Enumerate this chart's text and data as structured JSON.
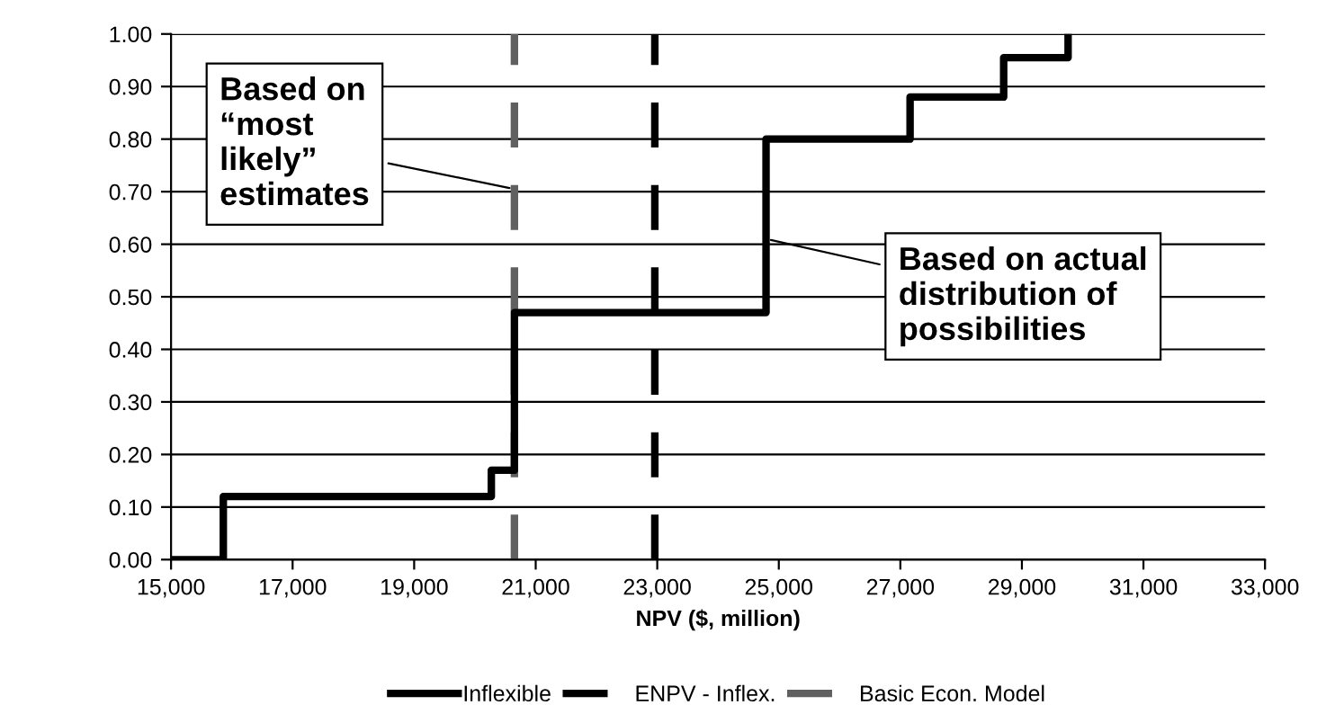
{
  "chart_data": {
    "type": "step",
    "xlabel": "NPV ($, million)",
    "series": [
      {
        "name": "Inflexible",
        "color": "#000000",
        "line_style": "solid",
        "x": [
          15000,
          15860,
          20270,
          20650,
          24790,
          27160,
          28700,
          29760
        ],
        "values": [
          0,
          0.12,
          0.17,
          0.47,
          0.8,
          0.88,
          0.955,
          1.0
        ]
      },
      {
        "name": "ENPV - Inflex.",
        "type": "line",
        "color": "#000000",
        "line_style": "dashed",
        "x": [
          22960,
          22960
        ],
        "values": [
          0,
          1.0
        ]
      },
      {
        "name": "Basic Econ. Model",
        "type": "line",
        "color": "#606060",
        "line_style": "dashed",
        "x": [
          20650,
          20650
        ],
        "values": [
          0,
          1.0
        ]
      }
    ],
    "xlim": [
      15000,
      33000
    ],
    "xticks": [
      {
        "value": 15000,
        "label": "15,000"
      },
      {
        "value": 17000,
        "label": "17,000"
      },
      {
        "value": 19000,
        "label": "19,000"
      },
      {
        "value": 21000,
        "label": "21,000"
      },
      {
        "value": 23000,
        "label": "23,000"
      },
      {
        "value": 25000,
        "label": "25,000"
      },
      {
        "value": 27000,
        "label": "27,000"
      },
      {
        "value": 29000,
        "label": "29,000"
      },
      {
        "value": 31000,
        "label": "31,000"
      },
      {
        "value": 33000,
        "label": "33,000"
      }
    ],
    "ylim": [
      0,
      1.0
    ],
    "yticks": [
      {
        "value": 0,
        "label": "0.00"
      },
      {
        "value": 0.1,
        "label": "0.10"
      },
      {
        "value": 0.2,
        "label": "0.20"
      },
      {
        "value": 0.3,
        "label": "0.30"
      },
      {
        "value": 0.4,
        "label": "0.40"
      },
      {
        "value": 0.5,
        "label": "0.50"
      },
      {
        "value": 0.6,
        "label": "0.60"
      },
      {
        "value": 0.7,
        "label": "0.70"
      },
      {
        "value": 0.8,
        "label": "0.80"
      },
      {
        "value": 0.9,
        "label": "0.90"
      },
      {
        "value": 1.0,
        "label": "1.00"
      }
    ],
    "grid": "y",
    "legend": "bottom",
    "annotations": [
      {
        "text": "Based on\n“most\nlikely”\nestimates",
        "x": 20650,
        "y": 0.705
      },
      {
        "text": "Based on actual\ndistribution of\npossibilities",
        "x": 24790,
        "y": 0.61
      }
    ]
  }
}
